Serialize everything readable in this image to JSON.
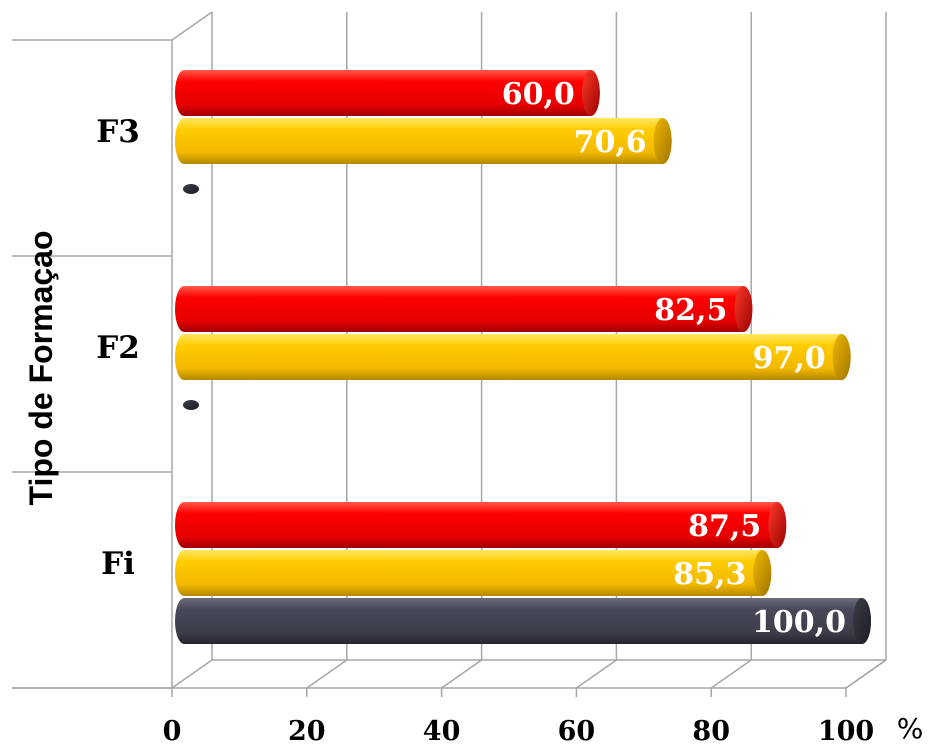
{
  "chart_data": {
    "type": "bar",
    "orientation": "horizontal",
    "categories": [
      "Fi",
      "F2",
      "F3"
    ],
    "series": [
      {
        "values": [
          100.0,
          0,
          0
        ],
        "labels": [
          "100,0",
          "",
          ""
        ],
        "color": "#41434f"
      },
      {
        "values": [
          85.3,
          97.0,
          70.6
        ],
        "labels": [
          "85,3",
          "97,0",
          "70,6"
        ],
        "color": "#ffcc00"
      },
      {
        "values": [
          87.5,
          82.5,
          60.0
        ],
        "labels": [
          "87,5",
          "82,5",
          "60,0"
        ],
        "color": "#ff0000"
      }
    ],
    "ylabel": "Tipo de Formaçao",
    "xunit": "%",
    "xlim": [
      0,
      100
    ],
    "xticks": [
      "0",
      "20",
      "40",
      "60",
      "80",
      "100"
    ],
    "grid": true,
    "style": "3d-cylinder"
  }
}
